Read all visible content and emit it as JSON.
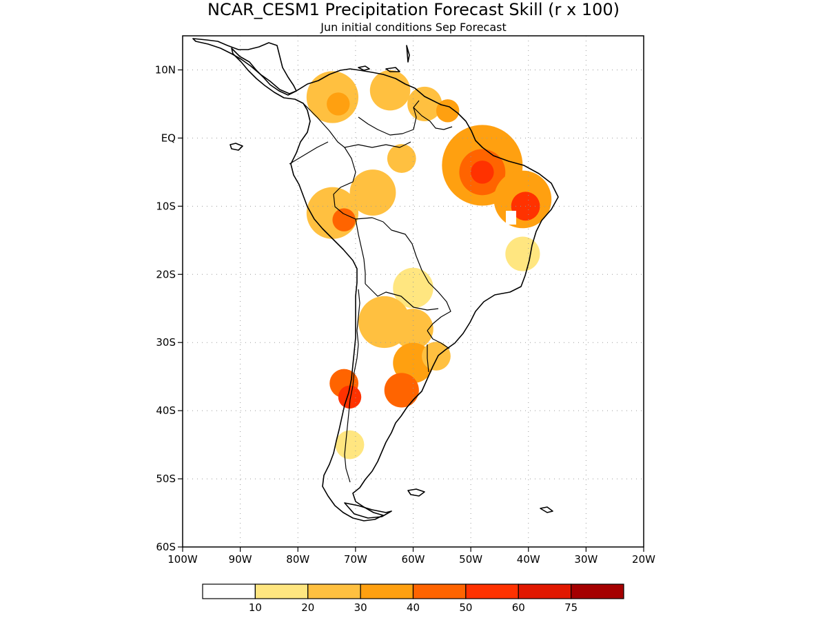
{
  "title": "NCAR_CESM1 Precipitation Forecast Skill (r x 100)",
  "subtitle": "Jun initial conditions  Sep Forecast",
  "chart_data": {
    "type": "heatmap",
    "xlim": [
      -100,
      -20
    ],
    "ylim": [
      -60,
      15
    ],
    "x_ticks": [
      {
        "value": -100,
        "label": "100W"
      },
      {
        "value": -90,
        "label": "90W"
      },
      {
        "value": -80,
        "label": "80W"
      },
      {
        "value": -70,
        "label": "70W"
      },
      {
        "value": -60,
        "label": "60W"
      },
      {
        "value": -50,
        "label": "50W"
      },
      {
        "value": -40,
        "label": "40W"
      },
      {
        "value": -30,
        "label": "30W"
      },
      {
        "value": -20,
        "label": "20W"
      }
    ],
    "y_ticks": [
      {
        "value": 10,
        "label": "10N"
      },
      {
        "value": 0,
        "label": "EQ"
      },
      {
        "value": -10,
        "label": "10S"
      },
      {
        "value": -20,
        "label": "20S"
      },
      {
        "value": -30,
        "label": "30S"
      },
      {
        "value": -40,
        "label": "40S"
      },
      {
        "value": -50,
        "label": "50S"
      },
      {
        "value": -60,
        "label": "60S"
      }
    ],
    "grid": true,
    "legend": {
      "placement": "bottom",
      "colors": [
        "#ffffff",
        "#ffe680",
        "#ffc040",
        "#ffa010",
        "#ff6400",
        "#ff3200",
        "#e11800",
        "#a50000"
      ],
      "labels": [
        "10",
        "20",
        "30",
        "40",
        "50",
        "60",
        "75"
      ]
    },
    "regions": [
      {
        "lon": -74,
        "lat": 6,
        "r": 4.5,
        "value": 25
      },
      {
        "lon": -73,
        "lat": 5,
        "r": 2.0,
        "value": 33
      },
      {
        "lon": -64,
        "lat": 7,
        "r": 3.5,
        "value": 20
      },
      {
        "lon": -58,
        "lat": 5,
        "r": 3.0,
        "value": 28
      },
      {
        "lon": -54,
        "lat": 4,
        "r": 2.0,
        "value": 30
      },
      {
        "lon": -62,
        "lat": -3,
        "r": 2.5,
        "value": 22
      },
      {
        "lon": -48,
        "lat": -4,
        "r": 7.0,
        "value": 38
      },
      {
        "lon": -48,
        "lat": -5,
        "r": 4.0,
        "value": 48
      },
      {
        "lon": -48,
        "lat": -5,
        "r": 2.0,
        "value": 58
      },
      {
        "lon": -41,
        "lat": -9,
        "r": 5.0,
        "value": 35
      },
      {
        "lon": -40.5,
        "lat": -10,
        "r": 2.5,
        "value": 50
      },
      {
        "lon": -41,
        "lat": -17,
        "r": 3.0,
        "value": 18
      },
      {
        "lon": -74,
        "lat": -11,
        "r": 4.5,
        "value": 28
      },
      {
        "lon": -67,
        "lat": -8,
        "r": 4.0,
        "value": 20
      },
      {
        "lon": -72,
        "lat": -12,
        "r": 2.0,
        "value": 42
      },
      {
        "lon": -60,
        "lat": -22,
        "r": 3.5,
        "value": 18
      },
      {
        "lon": -65,
        "lat": -27,
        "r": 4.5,
        "value": 25
      },
      {
        "lon": -60,
        "lat": -28,
        "r": 3.5,
        "value": 28
      },
      {
        "lon": -60,
        "lat": -33,
        "r": 3.5,
        "value": 32
      },
      {
        "lon": -62,
        "lat": -37,
        "r": 3.0,
        "value": 40
      },
      {
        "lon": -56,
        "lat": -32,
        "r": 2.5,
        "value": 28
      },
      {
        "lon": -72,
        "lat": -36,
        "r": 2.5,
        "value": 40
      },
      {
        "lon": -71,
        "lat": -38,
        "r": 2.0,
        "value": 58
      },
      {
        "lon": -71,
        "lat": -45,
        "r": 2.5,
        "value": 15
      }
    ]
  }
}
